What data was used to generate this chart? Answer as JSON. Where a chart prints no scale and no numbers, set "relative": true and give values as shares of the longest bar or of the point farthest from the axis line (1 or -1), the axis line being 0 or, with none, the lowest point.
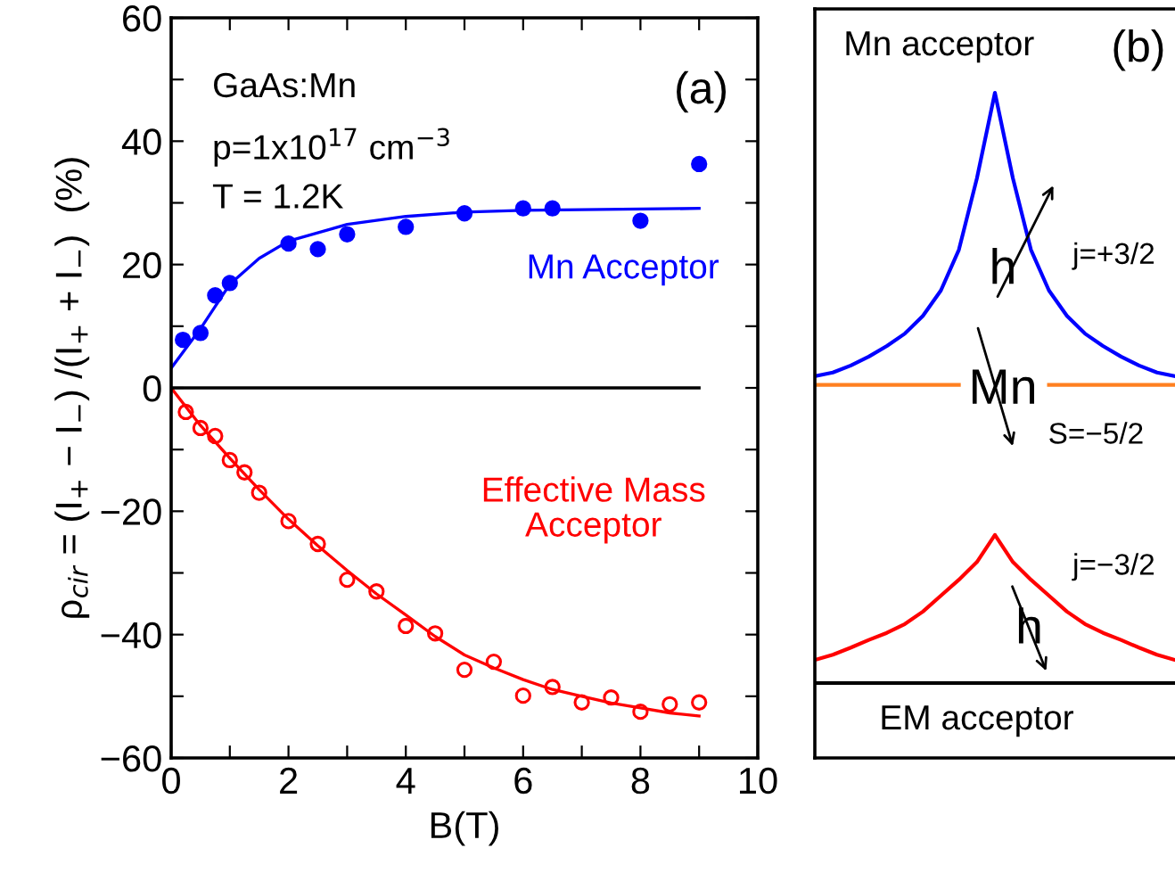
{
  "chart_data": [
    {
      "type": "scatter",
      "xlabel": "B(T)",
      "ylabel": "ρ$_{cir}$ = (I$_{+}$ − I$_{−}$) /(I$_{+}$ + I$_{−}$)  (%)",
      "xlim": [
        0,
        10
      ],
      "ylim": [
        -60,
        60
      ],
      "xticks": [
        0,
        {
          "value": 1,
          "label": null
        },
        2,
        {
          "value": 3,
          "label": null
        },
        4,
        {
          "value": 5,
          "label": null
        },
        6,
        {
          "value": 7,
          "label": null
        },
        8,
        {
          "value": 9,
          "label": null
        },
        10
      ],
      "yticks": [
        -60,
        {
          "value": -50,
          "label": null
        },
        -40,
        {
          "value": -30,
          "label": null
        },
        -20,
        {
          "value": -10,
          "label": null
        },
        0,
        {
          "value": 10,
          "label": null
        },
        20,
        {
          "value": 30,
          "label": null
        },
        40,
        {
          "value": 50,
          "label": null
        },
        60
      ],
      "grid": false,
      "annotations": [
        "GaAs:Mn",
        "p=1x10$^{17}$ cm$^{−3}$",
        "T = 1.2K",
        "(a)"
      ],
      "series": [
        {
          "name": "Mn Acceptor",
          "type": "scatter",
          "marker": "circle",
          "color": "#0000ff",
          "x": [
            0.2,
            0.5,
            0.75,
            1,
            2,
            2.5,
            3,
            4,
            5,
            6,
            6.5,
            8,
            9
          ],
          "values": [
            7.8,
            8.9,
            15,
            17,
            23.4,
            22.5,
            24.9,
            26.1,
            28.3,
            29.1,
            29.1,
            27.1,
            36.3
          ]
        },
        {
          "type": "line",
          "color": "#0000ff",
          "x": [
            0,
            0.5,
            1,
            1.5,
            2,
            3,
            4,
            5,
            6,
            7,
            9
          ],
          "values": [
            3.2,
            9.6,
            16.8,
            21,
            23.8,
            26.5,
            27.8,
            28.5,
            28.8,
            28.9,
            29.1
          ]
        },
        {
          "name": "Effective Mass\nAcceptor",
          "type": "scatter",
          "marker": "circle",
          "color": "#ff0000",
          "x": [
            0.25,
            0.5,
            0.75,
            1,
            1.25,
            1.5,
            2,
            2.5,
            3,
            3.5,
            4,
            4.5,
            5,
            5.5,
            6,
            6.5,
            7,
            7.5,
            8,
            8.5,
            9
          ],
          "values": [
            -3.9,
            -6.5,
            -7.8,
            -11.7,
            -13.7,
            -17,
            -21.6,
            -25.3,
            -31.1,
            -33,
            -38.6,
            -39.8,
            -45.7,
            -44.4,
            -49.9,
            -48.5,
            -51,
            -50.2,
            -52.5,
            -51.3,
            -51
          ]
        },
        {
          "type": "line",
          "color": "#ff0000",
          "x": [
            0,
            0.5,
            1,
            1.5,
            2,
            2.5,
            3,
            3.5,
            4,
            4.5,
            5,
            5.5,
            6,
            6.5,
            7,
            7.5,
            8,
            8.5,
            9
          ],
          "values": [
            0,
            -6.1,
            -11.4,
            -16.5,
            -21.3,
            -25.6,
            -29.6,
            -33.4,
            -36.8,
            -40.3,
            -43.3,
            -45.4,
            -47.3,
            -48.9,
            -50,
            -51.1,
            -51.9,
            -52.7,
            -53.2
          ]
        },
        {
          "type": "line",
          "color": "#000000",
          "x": [
            0,
            9
          ],
          "values": [
            0,
            0
          ]
        }
      ]
    },
    {
      "type": "line",
      "relative": true,
      "categories": [
        null,
        null,
        null,
        null,
        null,
        null,
        null,
        null,
        null,
        null,
        null,
        null,
        null,
        null,
        null,
        null,
        null,
        null,
        null,
        null,
        null
      ],
      "annotations": [
        "Mn acceptor",
        "(b)",
        "h",
        "j=+3/2",
        "Mn",
        "S=−5/2",
        "j=−3/2",
        "h",
        "EM acceptor"
      ],
      "series": [
        {
          "color": "#0000ff",
          "values": [
            0.52,
            0.526,
            0.538,
            0.553,
            0.571,
            0.592,
            0.622,
            0.665,
            0.734,
            0.855,
            1,
            0.855,
            0.734,
            0.665,
            0.622,
            0.592,
            0.571,
            0.553,
            0.538,
            0.526,
            0.52
          ]
        },
        {
          "color": "#ff8020",
          "values": [
            0.505,
            0.505,
            0.505,
            0.505,
            0.505,
            0.505,
            0.505,
            0.505,
            0.505,
            null,
            null,
            null,
            null,
            0.505,
            0.505,
            0.505,
            0.505,
            0.505,
            0.505,
            0.505,
            0.505
          ]
        },
        {
          "color": "#ff0000",
          "values": [
            0.039,
            0.048,
            0.06,
            0.073,
            0.085,
            0.1,
            0.121,
            0.148,
            0.175,
            0.205,
            0.251,
            0.205,
            0.175,
            0.148,
            0.121,
            0.1,
            0.085,
            0.073,
            0.06,
            0.048,
            0.039
          ]
        },
        {
          "color": "#000000",
          "values": [
            0,
            0,
            0,
            0,
            0,
            0,
            0,
            0,
            0,
            0,
            0,
            0,
            0,
            0,
            0,
            0,
            0,
            0,
            0,
            0,
            0
          ]
        }
      ]
    }
  ]
}
